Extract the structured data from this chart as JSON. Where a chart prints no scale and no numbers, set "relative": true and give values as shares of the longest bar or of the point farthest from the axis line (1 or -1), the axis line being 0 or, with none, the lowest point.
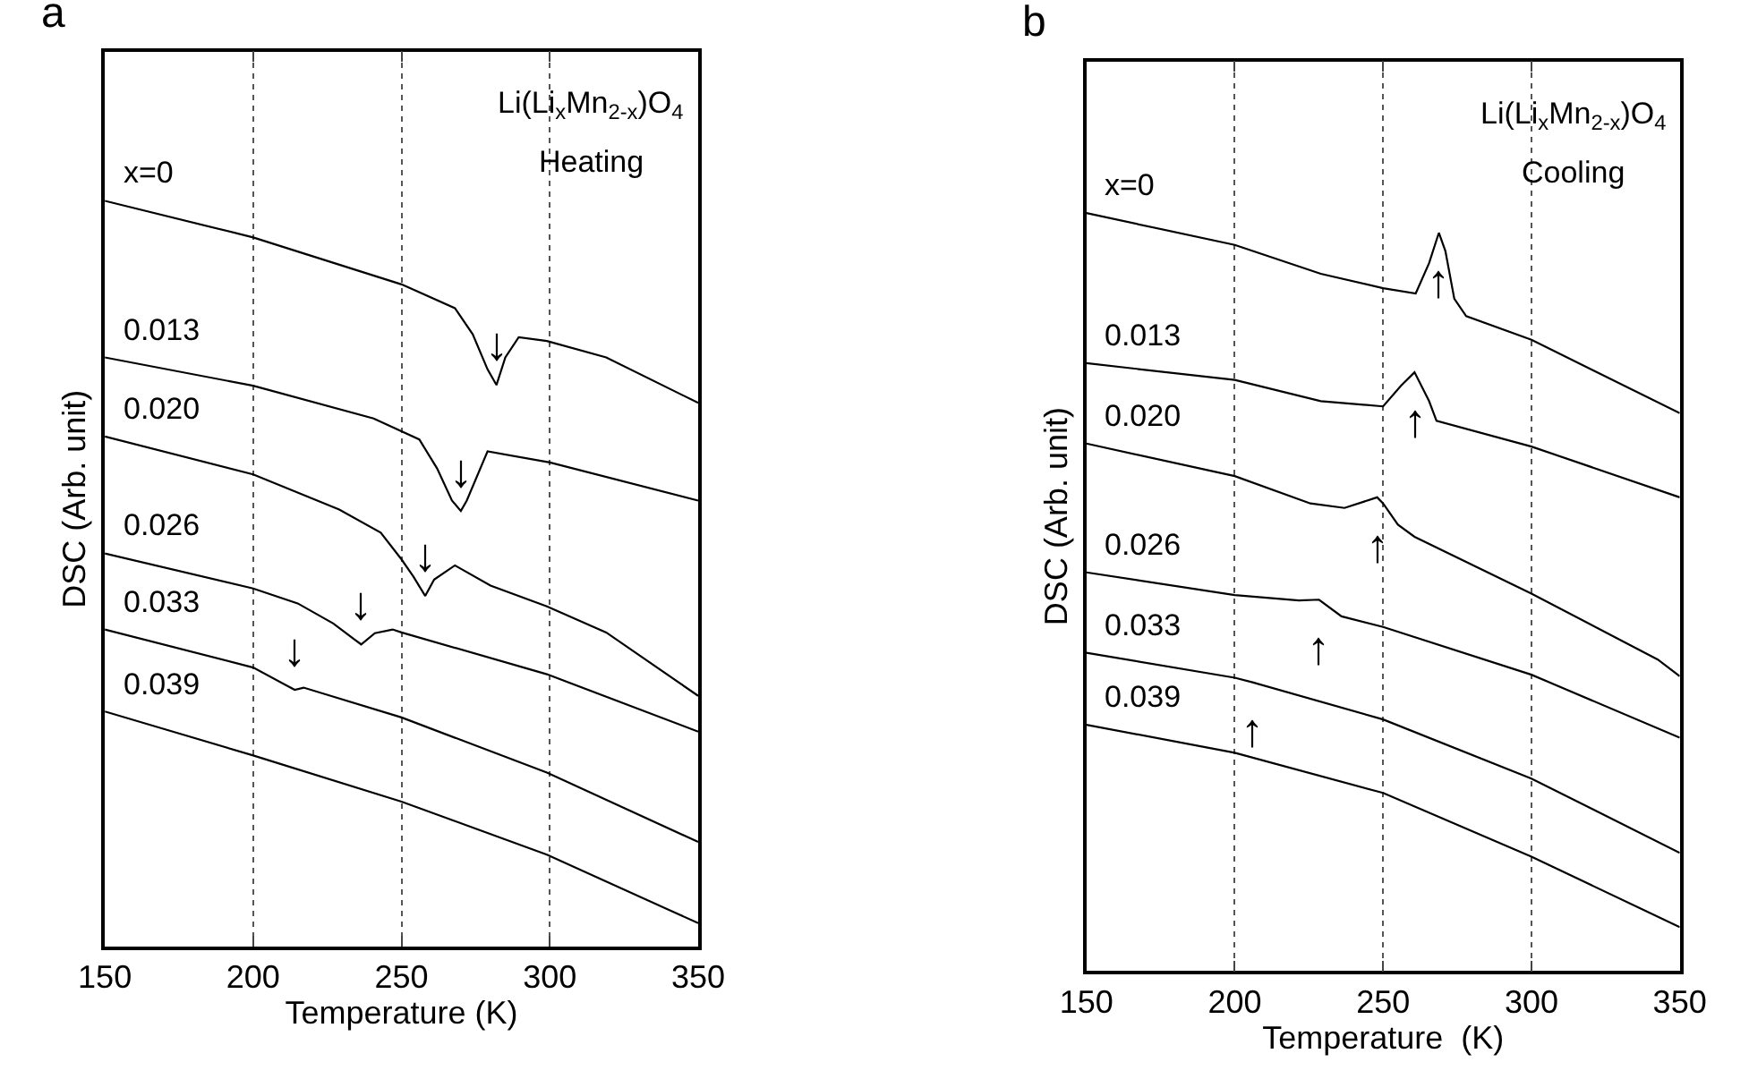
{
  "chart_data": [
    {
      "type": "line",
      "title": "a",
      "xlabel": "Temperature (K)",
      "ylabel": "DSC (Arb. unit)",
      "relative": true,
      "xlim": [
        150,
        350
      ],
      "xticks": [
        150,
        200,
        250,
        300,
        350
      ],
      "grid": "x",
      "tick_labels": "x",
      "annotations": [
        "Li(Li$_{x}$Mn$_{2-x}$)O$_{4}$",
        "Heating",
        {
          "text": "↓",
          "x": 282,
          "y": 0.753
        },
        {
          "text": "↓",
          "x": 270,
          "y": 0.584
        },
        {
          "text": "↓",
          "x": 258,
          "y": 0.47
        },
        {
          "text": "↓",
          "x": 236.4,
          "y": 0.405
        },
        {
          "text": "↓",
          "x": 214,
          "y": 0.344
        }
      ],
      "series": [
        {
          "name": "x=0",
          "color": "#000000",
          "x": [
            150,
            200,
            250,
            268,
            274,
            279,
            282,
            285,
            289.5,
            299,
            319,
            350
          ],
          "values": [
            1.0,
            0.951,
            0.888,
            0.856,
            0.821,
            0.774,
            0.753,
            0.79,
            0.817,
            0.812,
            0.79,
            0.729
          ]
        },
        {
          "name": "0.013",
          "color": "#000000",
          "x": [
            150,
            200,
            240.6,
            256,
            262,
            267,
            270,
            272,
            279,
            300,
            350
          ],
          "values": [
            0.79,
            0.752,
            0.708,
            0.68,
            0.641,
            0.598,
            0.584,
            0.598,
            0.664,
            0.649,
            0.598
          ]
        },
        {
          "name": "0.020",
          "color": "#000000",
          "x": [
            150,
            200,
            229,
            243,
            250,
            254,
            258,
            261,
            268,
            280,
            299,
            319,
            350
          ],
          "values": [
            0.684,
            0.633,
            0.586,
            0.555,
            0.519,
            0.496,
            0.47,
            0.492,
            0.511,
            0.484,
            0.456,
            0.421,
            0.336
          ]
        },
        {
          "name": "0.026",
          "color": "#000000",
          "x": [
            150,
            200,
            215,
            227,
            234,
            236.4,
            241,
            247,
            250,
            299,
            350
          ],
          "values": [
            0.527,
            0.48,
            0.46,
            0.433,
            0.412,
            0.405,
            0.42,
            0.425,
            0.421,
            0.365,
            0.288
          ]
        },
        {
          "name": "0.033",
          "color": "#000000",
          "x": [
            150,
            200,
            214,
            217,
            250,
            299,
            350
          ],
          "values": [
            0.425,
            0.374,
            0.344,
            0.347,
            0.307,
            0.233,
            0.14
          ]
        },
        {
          "name": "0.039",
          "color": "#000000",
          "x": [
            150,
            200,
            250,
            299,
            350
          ],
          "values": [
            0.315,
            0.256,
            0.194,
            0.123,
            0.031
          ]
        }
      ]
    },
    {
      "type": "line",
      "title": "b",
      "xlabel": "Temperature  (K)",
      "ylabel": "DSC (Arb. unit)",
      "relative": true,
      "xlim": [
        150,
        350
      ],
      "xticks": [
        150,
        200,
        250,
        300,
        350
      ],
      "grid": "x",
      "tick_labels": "x",
      "annotations": [
        "Li(Li$_{x}$Mn$_{2-x}$)O$_{4}$",
        "Cooling",
        {
          "text": "↑",
          "x": 268.8,
          "y": 0.974
        },
        {
          "text": "↑",
          "x": 260.6,
          "y": 0.79
        },
        {
          "text": "↑",
          "x": 248,
          "y": 0.625
        },
        {
          "text": "↑",
          "x": 228.4,
          "y": 0.49
        },
        {
          "text": "↑",
          "x": 206,
          "y": 0.381
        }
      ],
      "series": [
        {
          "name": "x=0",
          "color": "#000000",
          "x": [
            150,
            200,
            229,
            250,
            261,
            265.5,
            268.8,
            271,
            274,
            278,
            300,
            350
          ],
          "values": [
            1.0,
            0.958,
            0.92,
            0.901,
            0.894,
            0.934,
            0.974,
            0.95,
            0.887,
            0.864,
            0.833,
            0.736
          ]
        },
        {
          "name": "0.013",
          "color": "#000000",
          "x": [
            150,
            200,
            229,
            250,
            256,
            260.6,
            265.5,
            268,
            300,
            350
          ],
          "values": [
            0.802,
            0.78,
            0.752,
            0.745,
            0.772,
            0.79,
            0.752,
            0.726,
            0.692,
            0.625
          ]
        },
        {
          "name": "0.020",
          "color": "#000000",
          "x": [
            150,
            200,
            225.5,
            237,
            248,
            250,
            255,
            260.6,
            300,
            342.6,
            350
          ],
          "values": [
            0.696,
            0.653,
            0.617,
            0.611,
            0.625,
            0.617,
            0.589,
            0.573,
            0.498,
            0.411,
            0.389
          ]
        },
        {
          "name": "0.026",
          "color": "#000000",
          "x": [
            150,
            200,
            221.6,
            228.4,
            236,
            250,
            300,
            350
          ],
          "values": [
            0.526,
            0.496,
            0.489,
            0.49,
            0.468,
            0.454,
            0.391,
            0.308
          ]
        },
        {
          "name": "0.033",
          "color": "#000000",
          "x": [
            150,
            200,
            206,
            250,
            300,
            350
          ],
          "values": [
            0.42,
            0.387,
            0.381,
            0.332,
            0.254,
            0.156
          ]
        },
        {
          "name": "0.039",
          "color": "#000000",
          "x": [
            150,
            200,
            250,
            300,
            350
          ],
          "values": [
            0.325,
            0.288,
            0.235,
            0.151,
            0.058
          ]
        }
      ]
    }
  ]
}
